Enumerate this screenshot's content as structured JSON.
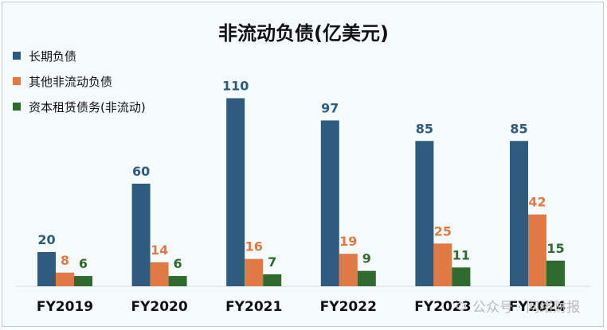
{
  "chart_data": {
    "type": "bar",
    "title": "非流动负债(亿美元)",
    "categories": [
      "FY2019",
      "FY2020",
      "FY2021",
      "FY2022",
      "FY2023",
      "FY2024"
    ],
    "series": [
      {
        "name": "长期负债",
        "color": "#2e5c7e",
        "values": [
          20,
          60,
          110,
          97,
          85,
          85
        ]
      },
      {
        "name": "其他非流动负债",
        "color": "#e07a44",
        "values": [
          8,
          14,
          16,
          19,
          25,
          42
        ]
      },
      {
        "name": "资本租赁债务(非流动)",
        "color": "#2f6b2f",
        "values": [
          6,
          6,
          7,
          9,
          11,
          15
        ]
      }
    ],
    "xlabel": "",
    "ylabel": "",
    "ylim": [
      0,
      110
    ],
    "grid": false,
    "legend": "top-left"
  },
  "watermark": {
    "text": "公众号 · 网络财报",
    "icon": "wechat-icon"
  }
}
